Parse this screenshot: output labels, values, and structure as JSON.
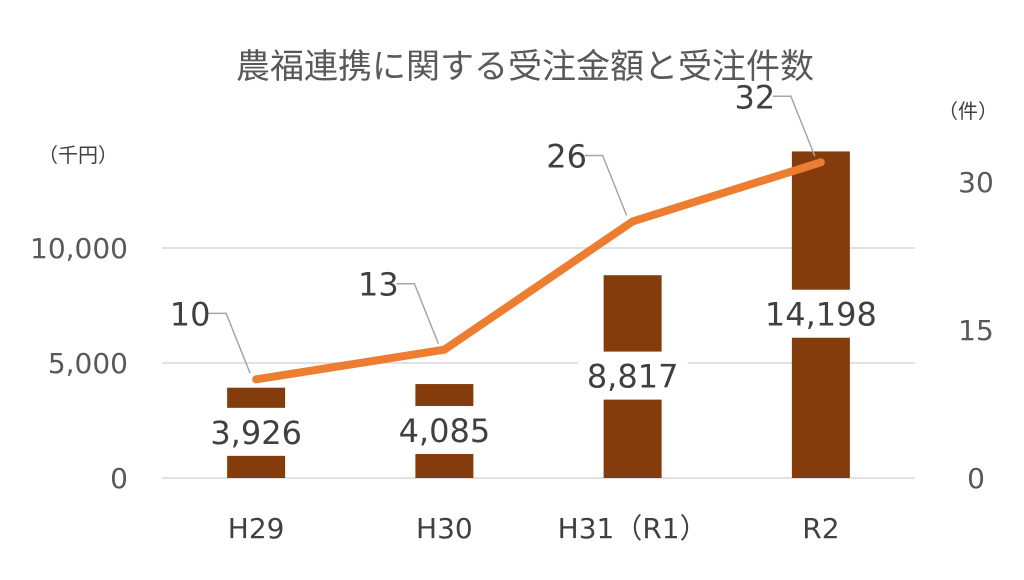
{
  "chart_data": {
    "type": "bar",
    "title": "農福連携に関する受注金額と受注件数",
    "categories": [
      "H29",
      "H30",
      "H31（R1）",
      "R2"
    ],
    "y_left": {
      "unit_label": "（千円）",
      "ylim": [
        0,
        15000
      ],
      "ticks": [
        "0",
        "5,000",
        "10,000"
      ],
      "tick_values": [
        0,
        5000,
        10000
      ]
    },
    "y_right": {
      "unit_label": "（件）",
      "ylim": [
        0,
        36
      ],
      "ticks": [
        "0",
        "15",
        "30"
      ],
      "tick_values": [
        0,
        15,
        30
      ]
    },
    "grid": true,
    "series": [
      {
        "kind": "bar",
        "axis": "left",
        "values": [
          3926,
          4085,
          8817,
          14198
        ],
        "labels": [
          "3,926",
          "4,085",
          "8,817",
          "14,198"
        ],
        "color": "#843c0c"
      },
      {
        "kind": "line",
        "axis": "right",
        "values": [
          10,
          13,
          26,
          32
        ],
        "labels": [
          "10",
          "13",
          "26",
          "32"
        ],
        "color": "#ed7d31"
      }
    ]
  }
}
